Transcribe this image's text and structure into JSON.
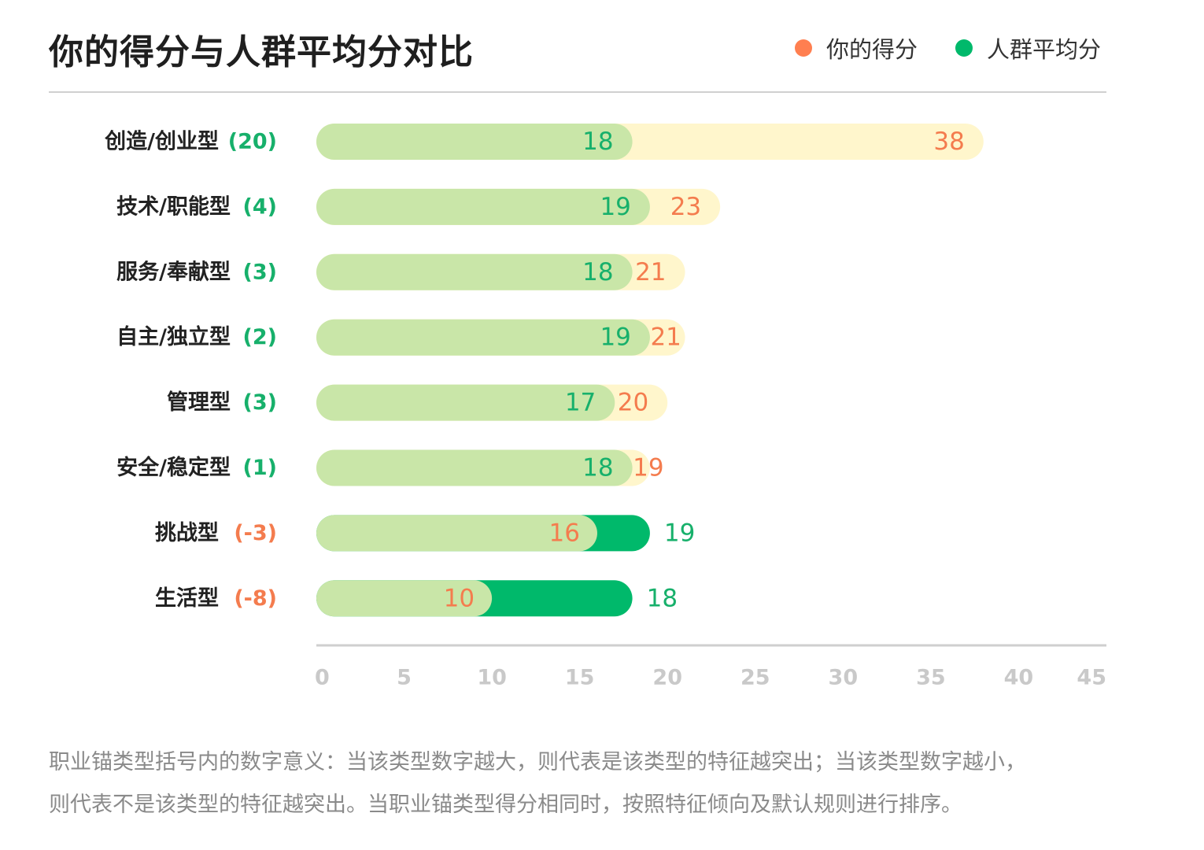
{
  "header": {
    "title": "你的得分与人群平均分对比"
  },
  "legend": {
    "items": [
      {
        "label": "你的得分",
        "color": "#ff7f50"
      },
      {
        "label": "人群平均分",
        "color": "#00b96b"
      }
    ]
  },
  "colors": {
    "you_track": "#fff6cc",
    "avg_light": "#c9e6a8",
    "avg_dark": "#00b96b",
    "you_text": "#f47c4e",
    "avg_text": "#17b06b",
    "axis": "#cfcfcf",
    "tick_text": "#c9c9c9"
  },
  "chart_data": {
    "type": "bar",
    "orientation": "horizontal",
    "categories": [
      "创造/创业型",
      "技术/职能型",
      "服务/奉献型",
      "自主/独立型",
      "管理型",
      "安全/稳定型",
      "挑战型",
      "生活型"
    ],
    "diffs": [
      "(20)",
      "(4)",
      "(3)",
      "(2)",
      "(3)",
      "(1)",
      "(-3)",
      "(-8)"
    ],
    "series": [
      {
        "name": "你的得分",
        "values": [
          38,
          23,
          21,
          21,
          20,
          19,
          16,
          10
        ]
      },
      {
        "name": "人群平均分",
        "values": [
          18,
          19,
          18,
          19,
          17,
          18,
          19,
          18
        ]
      }
    ],
    "xlim": [
      0,
      45
    ],
    "xticks": [
      0,
      5,
      10,
      15,
      20,
      25,
      30,
      35,
      40,
      45
    ],
    "grid": false,
    "legend_position": "top-right"
  },
  "footnote": {
    "line1": "职业锚类型括号内的数字意义：当该类型数字越大，则代表是该类型的特征越突出；当该类型数字越小，",
    "line2": "则代表不是该类型的特征越突出。当职业锚类型得分相同时，按照特征倾向及默认规则进行排序。"
  }
}
